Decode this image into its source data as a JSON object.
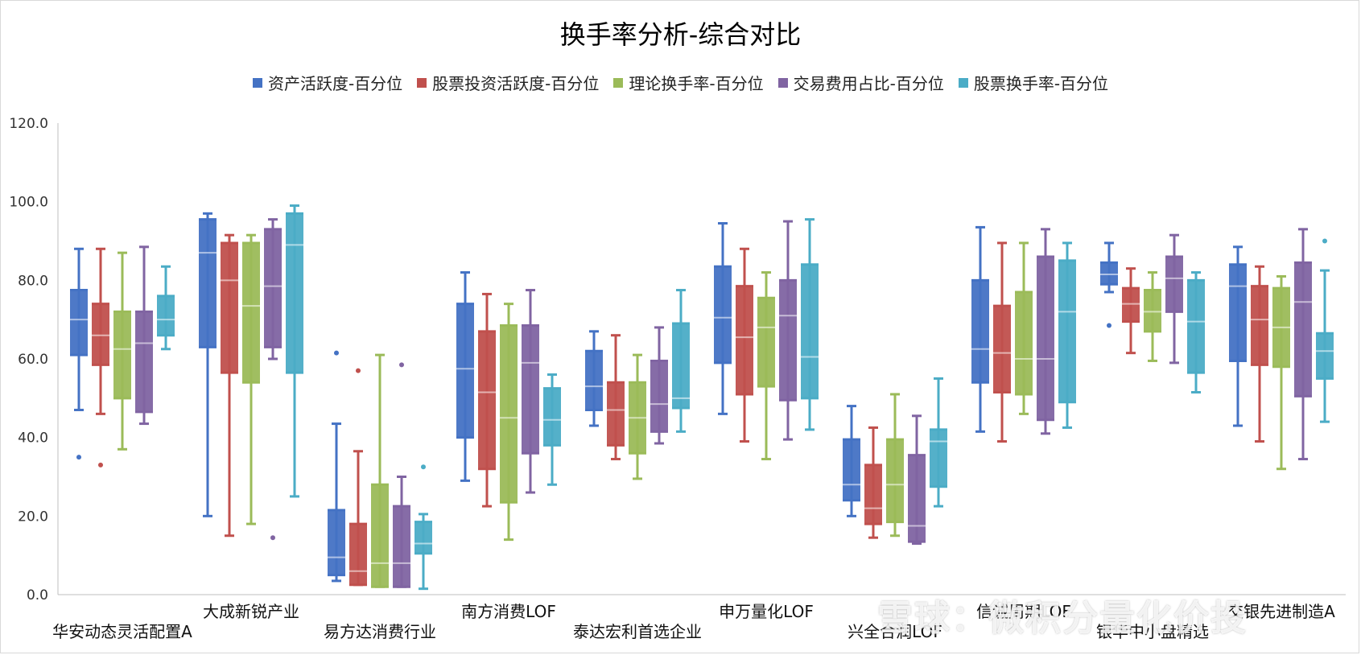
{
  "chart_data": {
    "type": "box",
    "title": "换手率分析-综合对比",
    "xlabel": "",
    "ylabel": "",
    "ylim": [
      0,
      120
    ],
    "yticks": [
      "0.0",
      "20.0",
      "40.0",
      "60.0",
      "80.0",
      "100.0",
      "120.0"
    ],
    "grid": false,
    "legend_position": "top",
    "categories": [
      "华安动态灵活配置A",
      "大成新锐产业",
      "易方达消费行业",
      "南方消费LOF",
      "泰达宏利首选企业",
      "申万量化LOF",
      "兴全合润LOF",
      "信诚周期LOF",
      "银华中小盘精选",
      "交银先进制造A"
    ],
    "series": [
      {
        "name": "资产活跃度-百分位",
        "color": "#4472c4",
        "values": [
          {
            "min": 47,
            "q1": 61,
            "median": 70,
            "q3": 77.5,
            "max": 88,
            "outliers": [
              35
            ]
          },
          {
            "min": 20,
            "q1": 63,
            "median": 87,
            "q3": 95.5,
            "max": 97,
            "outliers": []
          },
          {
            "min": 3.5,
            "q1": 5,
            "median": 9.5,
            "q3": 21.5,
            "max": 43.5,
            "outliers": [
              61.5
            ]
          },
          {
            "min": 29,
            "q1": 40,
            "median": 57.5,
            "q3": 74,
            "max": 82,
            "outliers": []
          },
          {
            "min": 43,
            "q1": 47,
            "median": 53,
            "q3": 62,
            "max": 67,
            "outliers": []
          },
          {
            "min": 46,
            "q1": 59,
            "median": 70.5,
            "q3": 83.5,
            "max": 94.5,
            "outliers": []
          },
          {
            "min": 20,
            "q1": 24,
            "median": 28,
            "q3": 39.5,
            "max": 48,
            "outliers": []
          },
          {
            "min": 41.5,
            "q1": 54,
            "median": 62.5,
            "q3": 80,
            "max": 93.5,
            "outliers": []
          },
          {
            "min": 77,
            "q1": 79,
            "median": 81.5,
            "q3": 84.5,
            "max": 89.5,
            "outliers": [
              68.5
            ]
          },
          {
            "min": 43,
            "q1": 59.5,
            "median": 78.5,
            "q3": 84,
            "max": 88.5,
            "outliers": []
          }
        ]
      },
      {
        "name": "股票投资活跃度-百分位",
        "color": "#c0504d",
        "values": [
          {
            "min": 46,
            "q1": 58.5,
            "median": 66,
            "q3": 74,
            "max": 88,
            "outliers": [
              33
            ]
          },
          {
            "min": 15,
            "q1": 56.5,
            "median": 80,
            "q3": 89.5,
            "max": 91.5,
            "outliers": []
          },
          {
            "min": 2.5,
            "q1": 2.5,
            "median": 6,
            "q3": 18,
            "max": 36.5,
            "outliers": [
              57
            ]
          },
          {
            "min": 22.5,
            "q1": 32,
            "median": 51.5,
            "q3": 67,
            "max": 76.5,
            "outliers": []
          },
          {
            "min": 34.5,
            "q1": 38,
            "median": 47,
            "q3": 54,
            "max": 66,
            "outliers": []
          },
          {
            "min": 39,
            "q1": 51,
            "median": 65.5,
            "q3": 78.5,
            "max": 88,
            "outliers": []
          },
          {
            "min": 14.5,
            "q1": 18,
            "median": 22,
            "q3": 33,
            "max": 42.5,
            "outliers": []
          },
          {
            "min": 39,
            "q1": 51.5,
            "median": 61.5,
            "q3": 73.5,
            "max": 89.5,
            "outliers": []
          },
          {
            "min": 61.5,
            "q1": 69.5,
            "median": 74,
            "q3": 78,
            "max": 83,
            "outliers": []
          },
          {
            "min": 39,
            "q1": 58.5,
            "median": 70,
            "q3": 78.5,
            "max": 83.5,
            "outliers": []
          }
        ]
      },
      {
        "name": "理论换手率-百分位",
        "color": "#9bbb59",
        "values": [
          {
            "min": 37,
            "q1": 50,
            "median": 62.5,
            "q3": 72,
            "max": 87,
            "outliers": []
          },
          {
            "min": 18,
            "q1": 54,
            "median": 73.5,
            "q3": 89.5,
            "max": 91.5,
            "outliers": []
          },
          {
            "min": 2,
            "q1": 2,
            "median": 8,
            "q3": 28,
            "max": 61,
            "outliers": []
          },
          {
            "min": 14,
            "q1": 23.5,
            "median": 45,
            "q3": 68.5,
            "max": 74,
            "outliers": []
          },
          {
            "min": 29.5,
            "q1": 36,
            "median": 45,
            "q3": 54,
            "max": 61,
            "outliers": []
          },
          {
            "min": 34.5,
            "q1": 53,
            "median": 68,
            "q3": 75.5,
            "max": 82,
            "outliers": []
          },
          {
            "min": 15,
            "q1": 18.5,
            "median": 28,
            "q3": 39.5,
            "max": 51,
            "outliers": []
          },
          {
            "min": 46,
            "q1": 51,
            "median": 60,
            "q3": 77,
            "max": 89.5,
            "outliers": []
          },
          {
            "min": 59.5,
            "q1": 67,
            "median": 72,
            "q3": 77.5,
            "max": 82,
            "outliers": []
          },
          {
            "min": 32,
            "q1": 58,
            "median": 68,
            "q3": 78,
            "max": 81,
            "outliers": []
          }
        ]
      },
      {
        "name": "交易费用占比-百分位",
        "color": "#8064a2",
        "values": [
          {
            "min": 43.5,
            "q1": 46.5,
            "median": 64,
            "q3": 72,
            "max": 88.5,
            "outliers": []
          },
          {
            "min": 60,
            "q1": 63,
            "median": 78.5,
            "q3": 93,
            "max": 95.5,
            "outliers": [
              14.5
            ]
          },
          {
            "min": 2,
            "q1": 2,
            "median": 8,
            "q3": 22.5,
            "max": 30,
            "outliers": [
              58.5
            ]
          },
          {
            "min": 26,
            "q1": 36,
            "median": 59,
            "q3": 68.5,
            "max": 77.5,
            "outliers": []
          },
          {
            "min": 38.5,
            "q1": 41.5,
            "median": 48.5,
            "q3": 59.5,
            "max": 68,
            "outliers": []
          },
          {
            "min": 39.5,
            "q1": 49.5,
            "median": 71,
            "q3": 80,
            "max": 95,
            "outliers": []
          },
          {
            "min": 13,
            "q1": 13.5,
            "median": 17.5,
            "q3": 35.5,
            "max": 45.5,
            "outliers": []
          },
          {
            "min": 41,
            "q1": 44.5,
            "median": 60,
            "q3": 86,
            "max": 93,
            "outliers": []
          },
          {
            "min": 59,
            "q1": 72,
            "median": 80.5,
            "q3": 86,
            "max": 91.5,
            "outliers": []
          },
          {
            "min": 34.5,
            "q1": 50.5,
            "median": 74.5,
            "q3": 84.5,
            "max": 93,
            "outliers": []
          }
        ]
      },
      {
        "name": "股票换手率-百分位",
        "color": "#4bacc6",
        "values": [
          {
            "min": 62.5,
            "q1": 66,
            "median": 70,
            "q3": 76,
            "max": 83.5,
            "outliers": []
          },
          {
            "min": 25,
            "q1": 56.5,
            "median": 89,
            "q3": 97,
            "max": 99,
            "outliers": []
          },
          {
            "min": 1.5,
            "q1": 10.5,
            "median": 13,
            "q3": 18.5,
            "max": 20.5,
            "outliers": [
              32.5
            ]
          },
          {
            "min": 28,
            "q1": 38,
            "median": 44.5,
            "q3": 52.5,
            "max": 56,
            "outliers": []
          },
          {
            "min": 41.5,
            "q1": 47.5,
            "median": 50,
            "q3": 69,
            "max": 77.5,
            "outliers": []
          },
          {
            "min": 42,
            "q1": 50,
            "median": 60.5,
            "q3": 84,
            "max": 95.5,
            "outliers": []
          },
          {
            "min": 22.5,
            "q1": 27.5,
            "median": 39,
            "q3": 42,
            "max": 55,
            "outliers": []
          },
          {
            "min": 42.5,
            "q1": 49,
            "median": 72,
            "q3": 85,
            "max": 89.5,
            "outliers": []
          },
          {
            "min": 51.5,
            "q1": 56.5,
            "median": 69.5,
            "q3": 80,
            "max": 82,
            "outliers": []
          },
          {
            "min": 44,
            "q1": 55,
            "median": 62,
            "q3": 66.5,
            "max": 82.5,
            "outliers": [
              90
            ]
          }
        ]
      }
    ]
  },
  "watermark": "雪球：微积分量化价投"
}
